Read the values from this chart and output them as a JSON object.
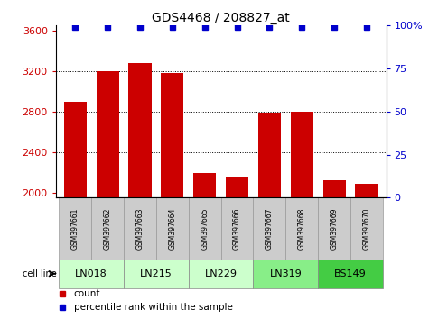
{
  "title": "GDS4468 / 208827_at",
  "samples": [
    "GSM397661",
    "GSM397662",
    "GSM397663",
    "GSM397664",
    "GSM397665",
    "GSM397666",
    "GSM397667",
    "GSM397668",
    "GSM397669",
    "GSM397670"
  ],
  "counts": [
    2900,
    3200,
    3280,
    3180,
    2195,
    2160,
    2790,
    2800,
    2120,
    2090
  ],
  "percentile_ranks": [
    99,
    99,
    99,
    99,
    99,
    99,
    99,
    99,
    99,
    99
  ],
  "ylim_left": [
    1950,
    3650
  ],
  "ylim_right": [
    0,
    100
  ],
  "yticks_left": [
    2000,
    2400,
    2800,
    3200,
    3600
  ],
  "yticks_right": [
    0,
    25,
    50,
    75,
    100
  ],
  "cell_lines": {
    "LN018": [
      0,
      1
    ],
    "LN215": [
      2,
      3
    ],
    "LN229": [
      4,
      5
    ],
    "LN319": [
      6,
      7
    ],
    "BS149": [
      8,
      9
    ]
  },
  "cell_line_colors": {
    "LN018": "#ccffcc",
    "LN215": "#ccffcc",
    "LN229": "#ccffcc",
    "LN319": "#88ee88",
    "BS149": "#44cc44"
  },
  "bar_color": "#cc0000",
  "dot_color": "#0000cc",
  "tick_label_color_left": "#cc0000",
  "tick_label_color_right": "#0000cc",
  "background_color": "#ffffff",
  "sample_bg": "#cccccc",
  "grid_color": "#000000",
  "legend_count_color": "#cc0000",
  "legend_pct_color": "#0000cc"
}
